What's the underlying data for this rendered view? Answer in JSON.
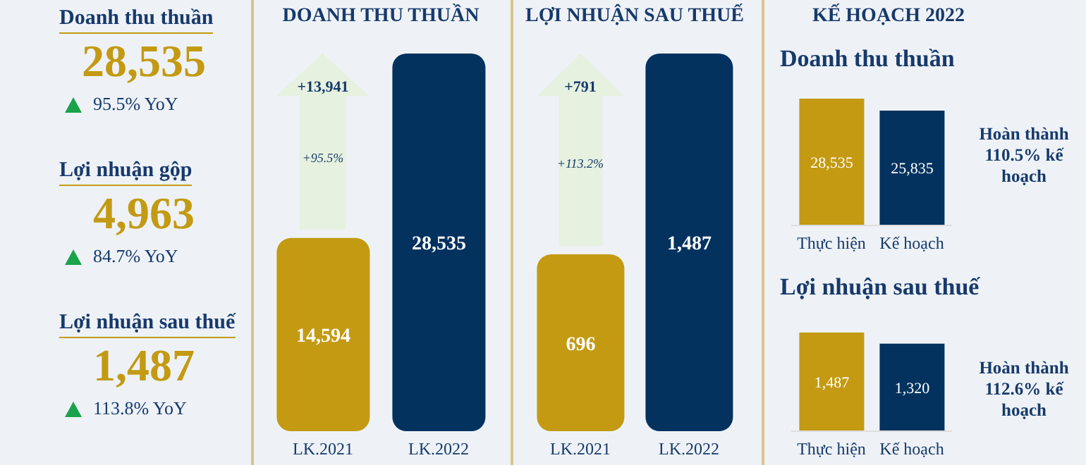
{
  "chart_data": [
    {
      "type": "other",
      "annotations": [
        "Doanh thu thuần",
        "28,535",
        "95.5% YoY",
        "Lợi nhuận gộp",
        "4,963",
        "84.7% YoY",
        "Lợi nhuận sau thuế",
        "1,487",
        "113.8% YoY"
      ]
    },
    {
      "type": "bar",
      "title": "DOANH THU THUẦN",
      "categories": [
        "LK.2021",
        "LK.2022"
      ],
      "values": [
        14594,
        28535
      ],
      "value_labels": [
        "14,594",
        "28,535"
      ],
      "colors": [
        "#c39a12",
        "#03325f"
      ],
      "annotations": [
        "+13,941",
        "+95.5%"
      ]
    },
    {
      "type": "bar",
      "title": "LỢI NHUẬN SAU THUẾ",
      "categories": [
        "LK.2021",
        "LK.2022"
      ],
      "values": [
        696,
        1487
      ],
      "value_labels": [
        "696",
        "1,487"
      ],
      "colors": [
        "#c39a12",
        "#03325f"
      ],
      "annotations": [
        "+791",
        "+113.2%"
      ]
    },
    {
      "type": "bar",
      "title": "KẾ HOẠCH 2022",
      "subtitle": "Doanh thu thuần",
      "categories": [
        "Thực hiện",
        "Kế hoạch"
      ],
      "values": [
        28535,
        25835
      ],
      "value_labels": [
        "28,535",
        "25,835"
      ],
      "colors": [
        "#c39a12",
        "#03325f"
      ],
      "annotations": [
        "Hoàn thành 110.5% kế hoạch"
      ]
    },
    {
      "type": "bar",
      "subtitle": "Lợi nhuận sau thuế",
      "categories": [
        "Thực hiện",
        "Kế hoạch"
      ],
      "values": [
        1487,
        1320
      ],
      "value_labels": [
        "1,487",
        "1,320"
      ],
      "colors": [
        "#c39a12",
        "#03325f"
      ],
      "annotations": [
        "Hoàn thành 112.6% kế hoạch"
      ]
    }
  ]
}
